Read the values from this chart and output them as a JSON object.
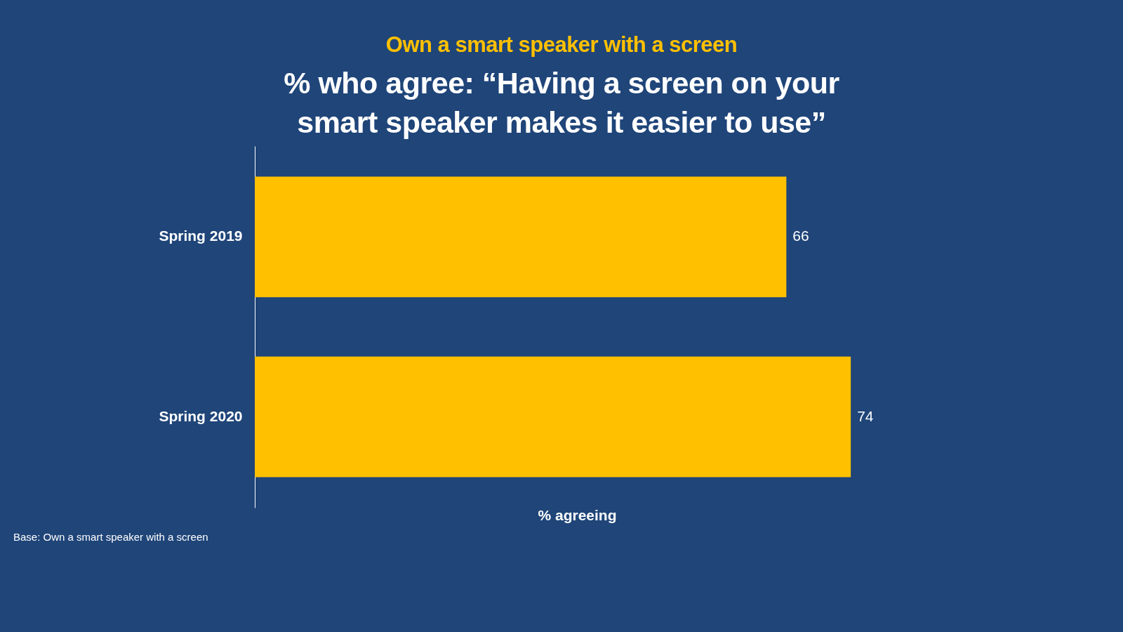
{
  "chart_data": {
    "type": "bar",
    "orientation": "horizontal",
    "title": "Own a smart speaker with a screen",
    "subtitle": "% who agree: “Having a screen on your smart speaker makes it easier to use”",
    "xlabel": "% agreeing",
    "categories": [
      "Spring 2019",
      "Spring 2020"
    ],
    "series": [
      {
        "color": "#ffc000",
        "values": [
          66,
          74
        ]
      }
    ],
    "data_labels": true,
    "tick_labels": "y",
    "grid": false,
    "annotations": [
      "Base: Own a smart speaker with a screen"
    ]
  }
}
